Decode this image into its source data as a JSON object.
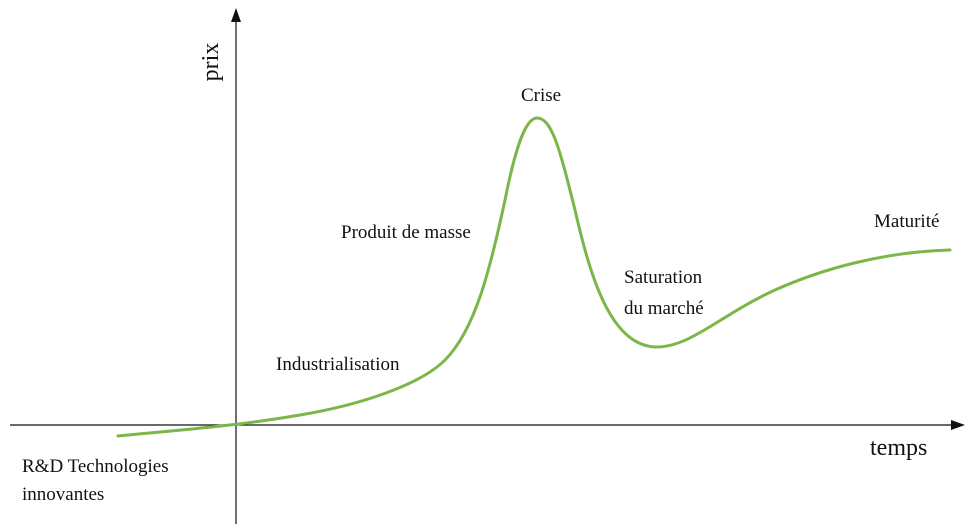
{
  "axes": {
    "y_label": "prix",
    "x_label": "temps"
  },
  "phases": [
    {
      "lines": [
        "R&D Technologies",
        "innovantes"
      ]
    },
    {
      "lines": [
        "Industrialisation"
      ]
    },
    {
      "lines": [
        "Produit de masse"
      ]
    },
    {
      "lines": [
        "Crise"
      ]
    },
    {
      "lines": [
        "Saturation",
        "du marché"
      ]
    },
    {
      "lines": [
        "Maturité"
      ]
    }
  ]
}
